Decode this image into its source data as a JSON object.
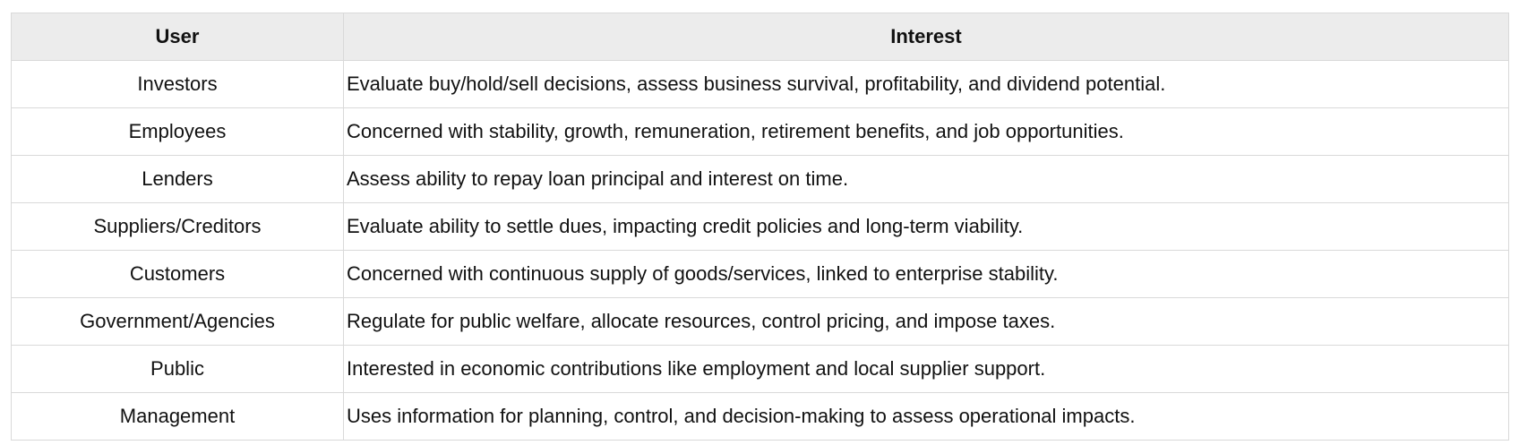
{
  "table": {
    "headers": [
      "User",
      "Interest"
    ],
    "rows": [
      {
        "user": "Investors",
        "interest": "Evaluate buy/hold/sell decisions, assess business survival, profitability, and dividend potential."
      },
      {
        "user": "Employees",
        "interest": "Concerned with stability, growth, remuneration, retirement benefits, and job opportunities."
      },
      {
        "user": "Lenders",
        "interest": "Assess ability to repay loan principal and interest on time."
      },
      {
        "user": "Suppliers/Creditors",
        "interest": "Evaluate ability to settle dues, impacting credit policies and long-term viability."
      },
      {
        "user": "Customers",
        "interest": "Concerned with continuous supply of goods/services, linked to enterprise stability."
      },
      {
        "user": "Government/Agencies",
        "interest": "Regulate for public welfare, allocate resources, control pricing, and impose taxes."
      },
      {
        "user": "Public",
        "interest": "Interested in economic contributions like employment and local supplier support."
      },
      {
        "user": "Management",
        "interest": "Uses information for planning, control, and decision-making to assess operational impacts."
      }
    ]
  },
  "colors": {
    "header_bg": "#ececec",
    "border": "#d9d9d9"
  }
}
